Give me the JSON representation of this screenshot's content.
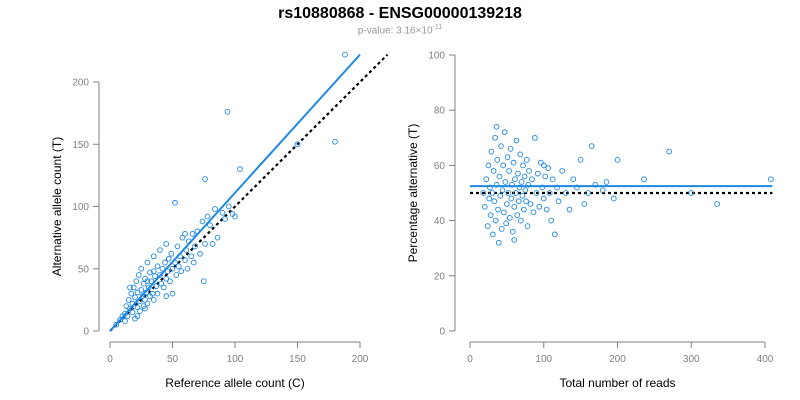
{
  "title": "rs10880868 - ENSG00000139218",
  "subtitle": {
    "prefix": "p-value: 3.16×10",
    "exponent": "-11"
  },
  "colors": {
    "points": "#1e88e5",
    "fit": "#1e88e5",
    "reference": "#000000",
    "axis": "#808080"
  },
  "chart_data": [
    {
      "type": "scatter",
      "xlabel": "Reference allele count (C)",
      "ylabel": "Alternative allele count (T)",
      "xlim": [
        0,
        200
      ],
      "ylim": [
        0,
        220
      ],
      "xticks": [
        "0",
        "50",
        "100",
        "150",
        "200"
      ],
      "yticks": [
        "0",
        "50",
        "100",
        "150",
        "200"
      ],
      "fit_line": {
        "from": [
          0,
          0
        ],
        "to": [
          200,
          222
        ],
        "style": "solid"
      },
      "reference_line": {
        "from": [
          0,
          0
        ],
        "to": [
          222,
          222
        ],
        "style": "dotted"
      },
      "points": [
        [
          5,
          5
        ],
        [
          8,
          9
        ],
        [
          10,
          12
        ],
        [
          12,
          14
        ],
        [
          13,
          20
        ],
        [
          14,
          12
        ],
        [
          15,
          25
        ],
        [
          16,
          18
        ],
        [
          17,
          30
        ],
        [
          18,
          15
        ],
        [
          18,
          22
        ],
        [
          19,
          35
        ],
        [
          20,
          27
        ],
        [
          20,
          10
        ],
        [
          21,
          40
        ],
        [
          22,
          19
        ],
        [
          22,
          31
        ],
        [
          23,
          45
        ],
        [
          24,
          24
        ],
        [
          24,
          16
        ],
        [
          25,
          33
        ],
        [
          25,
          50
        ],
        [
          26,
          28
        ],
        [
          27,
          20
        ],
        [
          27,
          38
        ],
        [
          28,
          42
        ],
        [
          28,
          25
        ],
        [
          29,
          31
        ],
        [
          30,
          55
        ],
        [
          30,
          22
        ],
        [
          31,
          35
        ],
        [
          32,
          28
        ],
        [
          32,
          47
        ],
        [
          33,
          40
        ],
        [
          34,
          30
        ],
        [
          35,
          60
        ],
        [
          35,
          25
        ],
        [
          36,
          44
        ],
        [
          37,
          36
        ],
        [
          38,
          52
        ],
        [
          38,
          30
        ],
        [
          40,
          45
        ],
        [
          40,
          65
        ],
        [
          41,
          38
        ],
        [
          42,
          50
        ],
        [
          43,
          35
        ],
        [
          44,
          55
        ],
        [
          45,
          42
        ],
        [
          45,
          70
        ],
        [
          46,
          48
        ],
        [
          47,
          58
        ],
        [
          48,
          40
        ],
        [
          49,
          62
        ],
        [
          50,
          50
        ],
        [
          50,
          30
        ],
        [
          52,
          55
        ],
        [
          53,
          45
        ],
        [
          54,
          68
        ],
        [
          55,
          52
        ],
        [
          56,
          60
        ],
        [
          57,
          48
        ],
        [
          58,
          75
        ],
        [
          60,
          57
        ],
        [
          61,
          65
        ],
        [
          62,
          50
        ],
        [
          63,
          72
        ],
        [
          65,
          60
        ],
        [
          66,
          78
        ],
        [
          67,
          55
        ],
        [
          68,
          68
        ],
        [
          70,
          80
        ],
        [
          72,
          62
        ],
        [
          74,
          88
        ],
        [
          75,
          40
        ],
        [
          76,
          70
        ],
        [
          78,
          92
        ],
        [
          80,
          85
        ],
        [
          82,
          70
        ],
        [
          84,
          98
        ],
        [
          86,
          75
        ],
        [
          90,
          95
        ],
        [
          92,
          90
        ],
        [
          94,
          176
        ],
        [
          95,
          100
        ],
        [
          98,
          94
        ],
        [
          100,
          92
        ],
        [
          104,
          130
        ],
        [
          76,
          122
        ],
        [
          52,
          103
        ],
        [
          150,
          150
        ],
        [
          180,
          152
        ],
        [
          188,
          222
        ],
        [
          60,
          78
        ],
        [
          45,
          28
        ],
        [
          35,
          48
        ],
        [
          28,
          18
        ],
        [
          22,
          12
        ],
        [
          16,
          35
        ],
        [
          12,
          8
        ],
        [
          30,
          40
        ]
      ]
    },
    {
      "type": "scatter",
      "xlabel": "Total number of reads",
      "ylabel": "Percentage alternative (T)",
      "xlim": [
        0,
        400
      ],
      "ylim": [
        0,
        100
      ],
      "xticks": [
        "0",
        "100",
        "200",
        "300",
        "400"
      ],
      "yticks": [
        "0",
        "20",
        "40",
        "60",
        "80",
        "100"
      ],
      "fit_line": {
        "from": [
          0,
          52.5
        ],
        "to": [
          410,
          52.5
        ],
        "style": "solid"
      },
      "reference_line": {
        "from": [
          0,
          50
        ],
        "to": [
          410,
          50
        ],
        "style": "dotted"
      },
      "points": [
        [
          20,
          45
        ],
        [
          22,
          55
        ],
        [
          24,
          38
        ],
        [
          25,
          60
        ],
        [
          26,
          48
        ],
        [
          27,
          52
        ],
        [
          28,
          42
        ],
        [
          29,
          65
        ],
        [
          30,
          50
        ],
        [
          31,
          35
        ],
        [
          32,
          58
        ],
        [
          33,
          47
        ],
        [
          34,
          70
        ],
        [
          35,
          40
        ],
        [
          36,
          53
        ],
        [
          37,
          62
        ],
        [
          38,
          44
        ],
        [
          39,
          32
        ],
        [
          40,
          56
        ],
        [
          41,
          49
        ],
        [
          42,
          67
        ],
        [
          43,
          37
        ],
        [
          44,
          51
        ],
        [
          45,
          60
        ],
        [
          46,
          43
        ],
        [
          47,
          72
        ],
        [
          48,
          54
        ],
        [
          49,
          39
        ],
        [
          50,
          46
        ],
        [
          51,
          63
        ],
        [
          52,
          50
        ],
        [
          53,
          58
        ],
        [
          54,
          41
        ],
        [
          55,
          66
        ],
        [
          56,
          48
        ],
        [
          57,
          53
        ],
        [
          58,
          36
        ],
        [
          59,
          61
        ],
        [
          60,
          45
        ],
        [
          61,
          55
        ],
        [
          62,
          50
        ],
        [
          63,
          69
        ],
        [
          64,
          42
        ],
        [
          65,
          57
        ],
        [
          66,
          47
        ],
        [
          67,
          52
        ],
        [
          68,
          64
        ],
        [
          69,
          40
        ],
        [
          70,
          54
        ],
        [
          71,
          49
        ],
        [
          72,
          60
        ],
        [
          73,
          44
        ],
        [
          74,
          56
        ],
        [
          75,
          51
        ],
        [
          76,
          47
        ],
        [
          77,
          62
        ],
        [
          78,
          38
        ],
        [
          79,
          53
        ],
        [
          80,
          58
        ],
        [
          82,
          46
        ],
        [
          84,
          55
        ],
        [
          86,
          43
        ],
        [
          88,
          70
        ],
        [
          90,
          50
        ],
        [
          92,
          57
        ],
        [
          94,
          45
        ],
        [
          96,
          61
        ],
        [
          98,
          52
        ],
        [
          100,
          48
        ],
        [
          102,
          56
        ],
        [
          104,
          44
        ],
        [
          106,
          59
        ],
        [
          108,
          50
        ],
        [
          110,
          40
        ],
        [
          112,
          55
        ],
        [
          115,
          35
        ],
        [
          118,
          52
        ],
        [
          120,
          47
        ],
        [
          125,
          58
        ],
        [
          130,
          50
        ],
        [
          135,
          44
        ],
        [
          140,
          55
        ],
        [
          145,
          52
        ],
        [
          150,
          62
        ],
        [
          155,
          46
        ],
        [
          160,
          50
        ],
        [
          165,
          67
        ],
        [
          170,
          53
        ],
        [
          180,
          51
        ],
        [
          185,
          54
        ],
        [
          195,
          48
        ],
        [
          200,
          62
        ],
        [
          236,
          55
        ],
        [
          270,
          65
        ],
        [
          300,
          50
        ],
        [
          335,
          46
        ],
        [
          408,
          55
        ],
        [
          18,
          50
        ],
        [
          36,
          74
        ],
        [
          60,
          33
        ],
        [
          100,
          60
        ]
      ]
    }
  ]
}
